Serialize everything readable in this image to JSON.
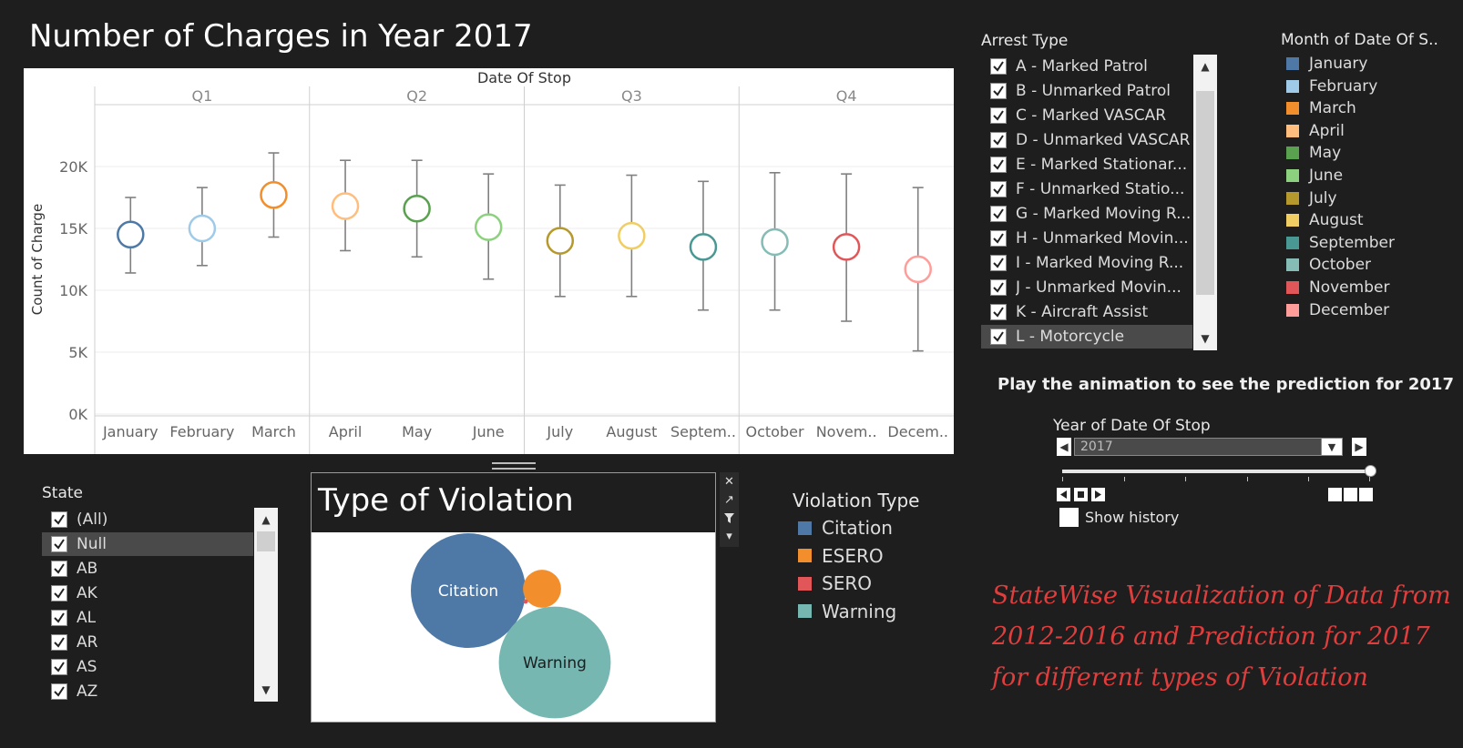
{
  "title": "Number of Charges in Year 2017",
  "chart_data": {
    "type": "scatter",
    "title": "Date Of Stop",
    "ylabel": "Count of Charge",
    "ylim": [
      0,
      25000
    ],
    "yticks": [
      {
        "value": 0,
        "label": "0K"
      },
      {
        "value": 5000,
        "label": "5K"
      },
      {
        "value": 10000,
        "label": "10K"
      },
      {
        "value": 15000,
        "label": "15K"
      },
      {
        "value": 20000,
        "label": "20K"
      }
    ],
    "quarters": [
      "Q1",
      "Q2",
      "Q3",
      "Q4"
    ],
    "categories": [
      "January",
      "February",
      "March",
      "April",
      "May",
      "June",
      "July",
      "August",
      "Septem..",
      "October",
      "Novem..",
      "Decem.."
    ],
    "series": [
      {
        "name": "January",
        "quarter": "Q1",
        "value": 14500,
        "low": 11400,
        "high": 17500,
        "color": "#4e79a7"
      },
      {
        "name": "February",
        "quarter": "Q1",
        "value": 15000,
        "low": 12000,
        "high": 18300,
        "color": "#a0cbe8"
      },
      {
        "name": "March",
        "quarter": "Q1",
        "value": 17700,
        "low": 14300,
        "high": 21100,
        "color": "#f28e2b"
      },
      {
        "name": "April",
        "quarter": "Q2",
        "value": 16800,
        "low": 13200,
        "high": 20500,
        "color": "#ffbe7d"
      },
      {
        "name": "May",
        "quarter": "Q2",
        "value": 16600,
        "low": 12700,
        "high": 20500,
        "color": "#59a14f"
      },
      {
        "name": "June",
        "quarter": "Q2",
        "value": 15100,
        "low": 10900,
        "high": 19400,
        "color": "#8cd17d"
      },
      {
        "name": "July",
        "quarter": "Q3",
        "value": 14000,
        "low": 9500,
        "high": 18500,
        "color": "#b6992d"
      },
      {
        "name": "August",
        "quarter": "Q3",
        "value": 14400,
        "low": 9500,
        "high": 19300,
        "color": "#f1ce63"
      },
      {
        "name": "September",
        "quarter": "Q3",
        "value": 13500,
        "low": 8400,
        "high": 18800,
        "color": "#499894"
      },
      {
        "name": "October",
        "quarter": "Q4",
        "value": 13900,
        "low": 8400,
        "high": 19500,
        "color": "#86bcb6"
      },
      {
        "name": "November",
        "quarter": "Q4",
        "value": 13500,
        "low": 7500,
        "high": 19400,
        "color": "#e15759"
      },
      {
        "name": "December",
        "quarter": "Q4",
        "value": 11700,
        "low": 5100,
        "high": 18300,
        "color": "#ff9d9a"
      }
    ],
    "grid": true
  },
  "arrest_type": {
    "title": "Arrest Type",
    "items": [
      "A - Marked Patrol",
      "B - Unmarked Patrol",
      "C - Marked VASCAR",
      "D - Unmarked VASCAR",
      "E - Marked Stationar...",
      "F - Unmarked Statio...",
      "G - Marked Moving R...",
      "H - Unmarked Movin...",
      "I - Marked Moving R...",
      "J - Unmarked Movin...",
      "K - Aircraft Assist",
      "L - Motorcycle"
    ],
    "highlighted_index": 11
  },
  "month_legend": {
    "title": "Month of Date Of S..",
    "items": [
      {
        "label": "January",
        "color": "#4e79a7"
      },
      {
        "label": "February",
        "color": "#a0cbe8"
      },
      {
        "label": "March",
        "color": "#f28e2b"
      },
      {
        "label": "April",
        "color": "#ffbe7d"
      },
      {
        "label": "May",
        "color": "#59a14f"
      },
      {
        "label": "June",
        "color": "#8cd17d"
      },
      {
        "label": "July",
        "color": "#b6992d"
      },
      {
        "label": "August",
        "color": "#f1ce63"
      },
      {
        "label": "September",
        "color": "#499894"
      },
      {
        "label": "October",
        "color": "#86bcb6"
      },
      {
        "label": "November",
        "color": "#e15759"
      },
      {
        "label": "December",
        "color": "#ff9d9a"
      }
    ]
  },
  "state": {
    "title": "State",
    "items": [
      "(All)",
      "Null",
      "AB",
      "AK",
      "AL",
      "AR",
      "AS",
      "AZ"
    ],
    "highlighted_index": 1
  },
  "type_of_violation": {
    "title": "Type of Violation",
    "bubbles": [
      {
        "label": "Citation",
        "size": 100,
        "color": "#4e79a7"
      },
      {
        "label": "",
        "size": 11,
        "color": "#f28e2b"
      },
      {
        "label": "",
        "size": 0.1,
        "color": "#e15759"
      },
      {
        "label": "Warning",
        "size": 95,
        "color": "#76b7b2"
      }
    ]
  },
  "violation_legend": {
    "title": "Violation Type",
    "items": [
      {
        "label": "Citation",
        "color": "#4e79a7"
      },
      {
        "label": "ESERO",
        "color": "#f28e2b"
      },
      {
        "label": "SERO",
        "color": "#e15759"
      },
      {
        "label": "Warning",
        "color": "#76b7b2"
      }
    ]
  },
  "animation": {
    "heading": "Play the animation to see the prediction for 2017",
    "year_label": "Year of Date Of Stop",
    "year_value": "2017",
    "show_history": "Show history",
    "slider_position": 1.0
  },
  "annotation": "StateWise Visualization of Data from 2012-2016 and Prediction for 2017 for different types of Violation"
}
